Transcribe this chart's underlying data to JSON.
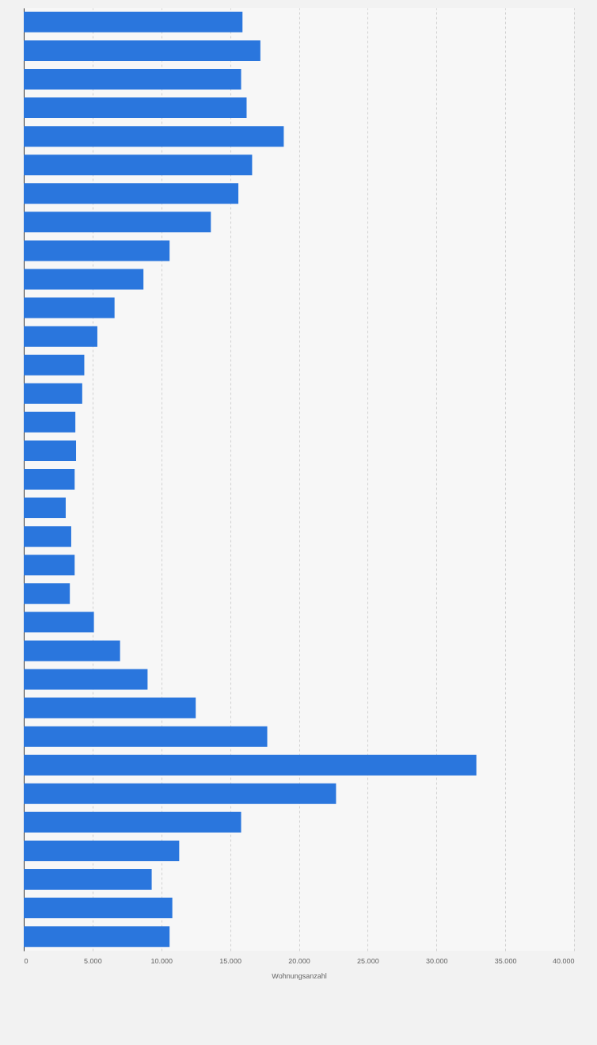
{
  "chart_data": {
    "type": "bar",
    "orientation": "horizontal",
    "xlabel": "Wohnungsanzahl",
    "categories": [
      null,
      null,
      null,
      null,
      null,
      null,
      null,
      null,
      null,
      null,
      null,
      null,
      null,
      null,
      null,
      null,
      null,
      null,
      null,
      null,
      null,
      null,
      null,
      null,
      null,
      null,
      null,
      null,
      null,
      null,
      null,
      null,
      null
    ],
    "values": [
      15900,
      17200,
      15800,
      16200,
      18900,
      16600,
      15600,
      13600,
      10600,
      8700,
      6600,
      5350,
      4400,
      4250,
      3750,
      3800,
      3700,
      3050,
      3450,
      3700,
      3350,
      5100,
      7000,
      9000,
      12500,
      17700,
      32900,
      22700,
      15800,
      11300,
      9300,
      10800,
      10600
    ],
    "color": "#2a76dd",
    "xlim": [
      0,
      40000
    ],
    "xticks": [
      0,
      {
        "value": 5000,
        "label": "5.000"
      },
      {
        "value": 10000,
        "label": "10.000"
      },
      {
        "value": 15000,
        "label": "15.000"
      },
      {
        "value": 20000,
        "label": "20.000"
      },
      {
        "value": 25000,
        "label": "25.000"
      },
      {
        "value": 30000,
        "label": "30.000"
      },
      {
        "value": 35000,
        "label": "35.000"
      },
      {
        "value": 40000,
        "label": "40.000"
      }
    ],
    "grid": "x",
    "tick_labels": "x"
  }
}
